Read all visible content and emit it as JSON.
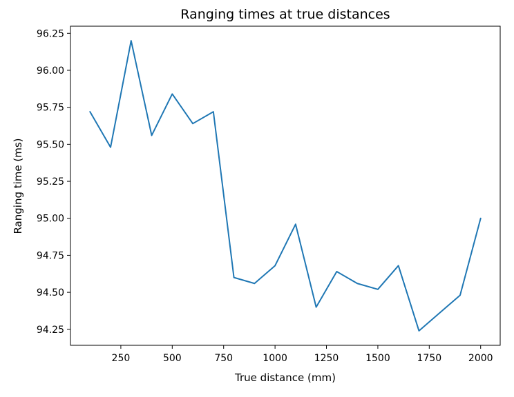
{
  "chart_data": {
    "type": "line",
    "title": "Ranging times at true distances",
    "xlabel": "True distance (mm)",
    "ylabel": "Ranging time (ms)",
    "xlim": [
      5,
      2095
    ],
    "ylim": [
      94.142,
      96.298
    ],
    "xticks": [
      250,
      500,
      750,
      1000,
      1250,
      1500,
      1750,
      2000
    ],
    "xtick_labels": [
      "250",
      "500",
      "750",
      "1000",
      "1250",
      "1500",
      "1750",
      "2000"
    ],
    "yticks": [
      94.25,
      94.5,
      94.75,
      95.0,
      95.25,
      95.5,
      95.75,
      96.0,
      96.25
    ],
    "ytick_labels": [
      "94.25",
      "94.50",
      "94.75",
      "95.00",
      "95.25",
      "95.50",
      "95.75",
      "96.00",
      "96.25"
    ],
    "grid": false,
    "series": [
      {
        "color": "#1f77b4",
        "x": [
          100,
          200,
          300,
          400,
          500,
          600,
          700,
          800,
          900,
          1000,
          1100,
          1200,
          1300,
          1400,
          1500,
          1600,
          1700,
          1800,
          1900,
          2000
        ],
        "y": [
          95.72,
          95.48,
          96.2,
          95.56,
          95.84,
          95.64,
          95.72,
          94.6,
          94.56,
          94.68,
          94.96,
          94.4,
          94.64,
          94.56,
          94.52,
          94.68,
          94.24,
          94.36,
          94.48,
          95.0
        ]
      }
    ]
  }
}
